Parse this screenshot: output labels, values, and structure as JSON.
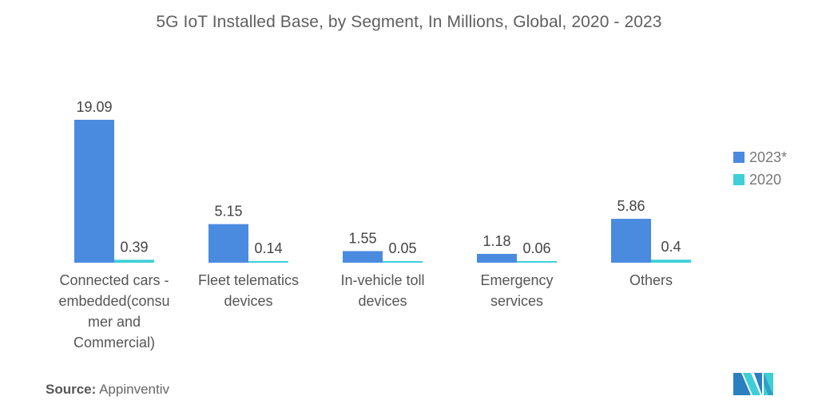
{
  "chart_data": {
    "type": "bar",
    "title": "5G IoT Installed Base, by Segment, In Millions, Global, 2020 - 2023",
    "xlabel": "",
    "ylabel": "",
    "ylim": [
      0,
      20
    ],
    "grid": false,
    "legend_position": "right",
    "categories": [
      [
        "Connected cars -",
        "embedded(consu",
        "mer and",
        "Commercial)"
      ],
      [
        "Fleet telematics",
        "devices"
      ],
      [
        "In-vehicle toll",
        "devices"
      ],
      [
        "Emergency",
        "services"
      ],
      [
        "Others"
      ]
    ],
    "series": [
      {
        "name": "2023*",
        "color": "#4a8bdf",
        "values": [
          19.09,
          5.15,
          1.55,
          1.18,
          5.86
        ],
        "labels": [
          "19.09",
          "5.15",
          "1.55",
          "1.18",
          "5.86"
        ]
      },
      {
        "name": "2020",
        "color": "#3ecfd6",
        "values": [
          0.39,
          0.14,
          0.05,
          0.06,
          0.4
        ],
        "labels": [
          "0.39",
          "0.14",
          "0.05",
          "0.06",
          "0.4"
        ]
      }
    ]
  },
  "source": {
    "label": "Source:",
    "value": "Appinventiv"
  },
  "logo": {
    "icon": "mordor-intelligence-logo-icon"
  }
}
